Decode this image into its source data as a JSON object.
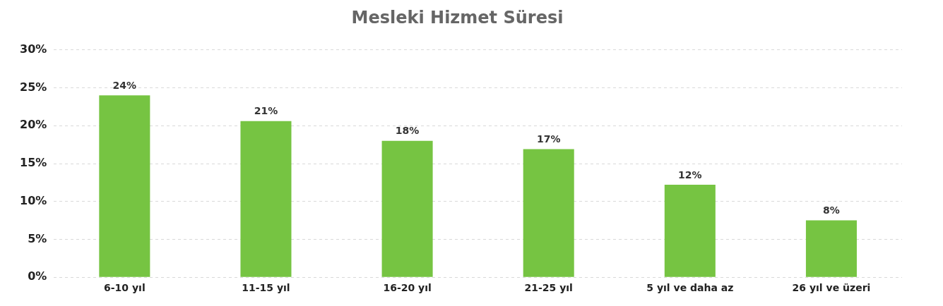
{
  "chart_data": {
    "type": "bar",
    "title": "Mesleki Hizmet Süresi",
    "categories": [
      "6-10 yıl",
      "11-15 yıl",
      "16-20 yıl",
      "21-25 yıl",
      "5 yıl ve daha az",
      "26 yıl ve üzeri"
    ],
    "values": [
      24,
      20.6,
      18,
      16.9,
      12.2,
      7.5
    ],
    "value_labels": [
      "24%",
      "21%",
      "18%",
      "17%",
      "12%",
      "8%"
    ],
    "color": "#76c442",
    "ylim": [
      0,
      30
    ],
    "yticks": [
      {
        "value": 0,
        "label": "0%"
      },
      {
        "value": 5,
        "label": "5%"
      },
      {
        "value": 10,
        "label": "10%"
      },
      {
        "value": 15,
        "label": "15%"
      },
      {
        "value": 20,
        "label": "20%"
      },
      {
        "value": 25,
        "label": "25%"
      },
      {
        "value": 30,
        "label": "30%"
      }
    ],
    "grid": "y"
  }
}
